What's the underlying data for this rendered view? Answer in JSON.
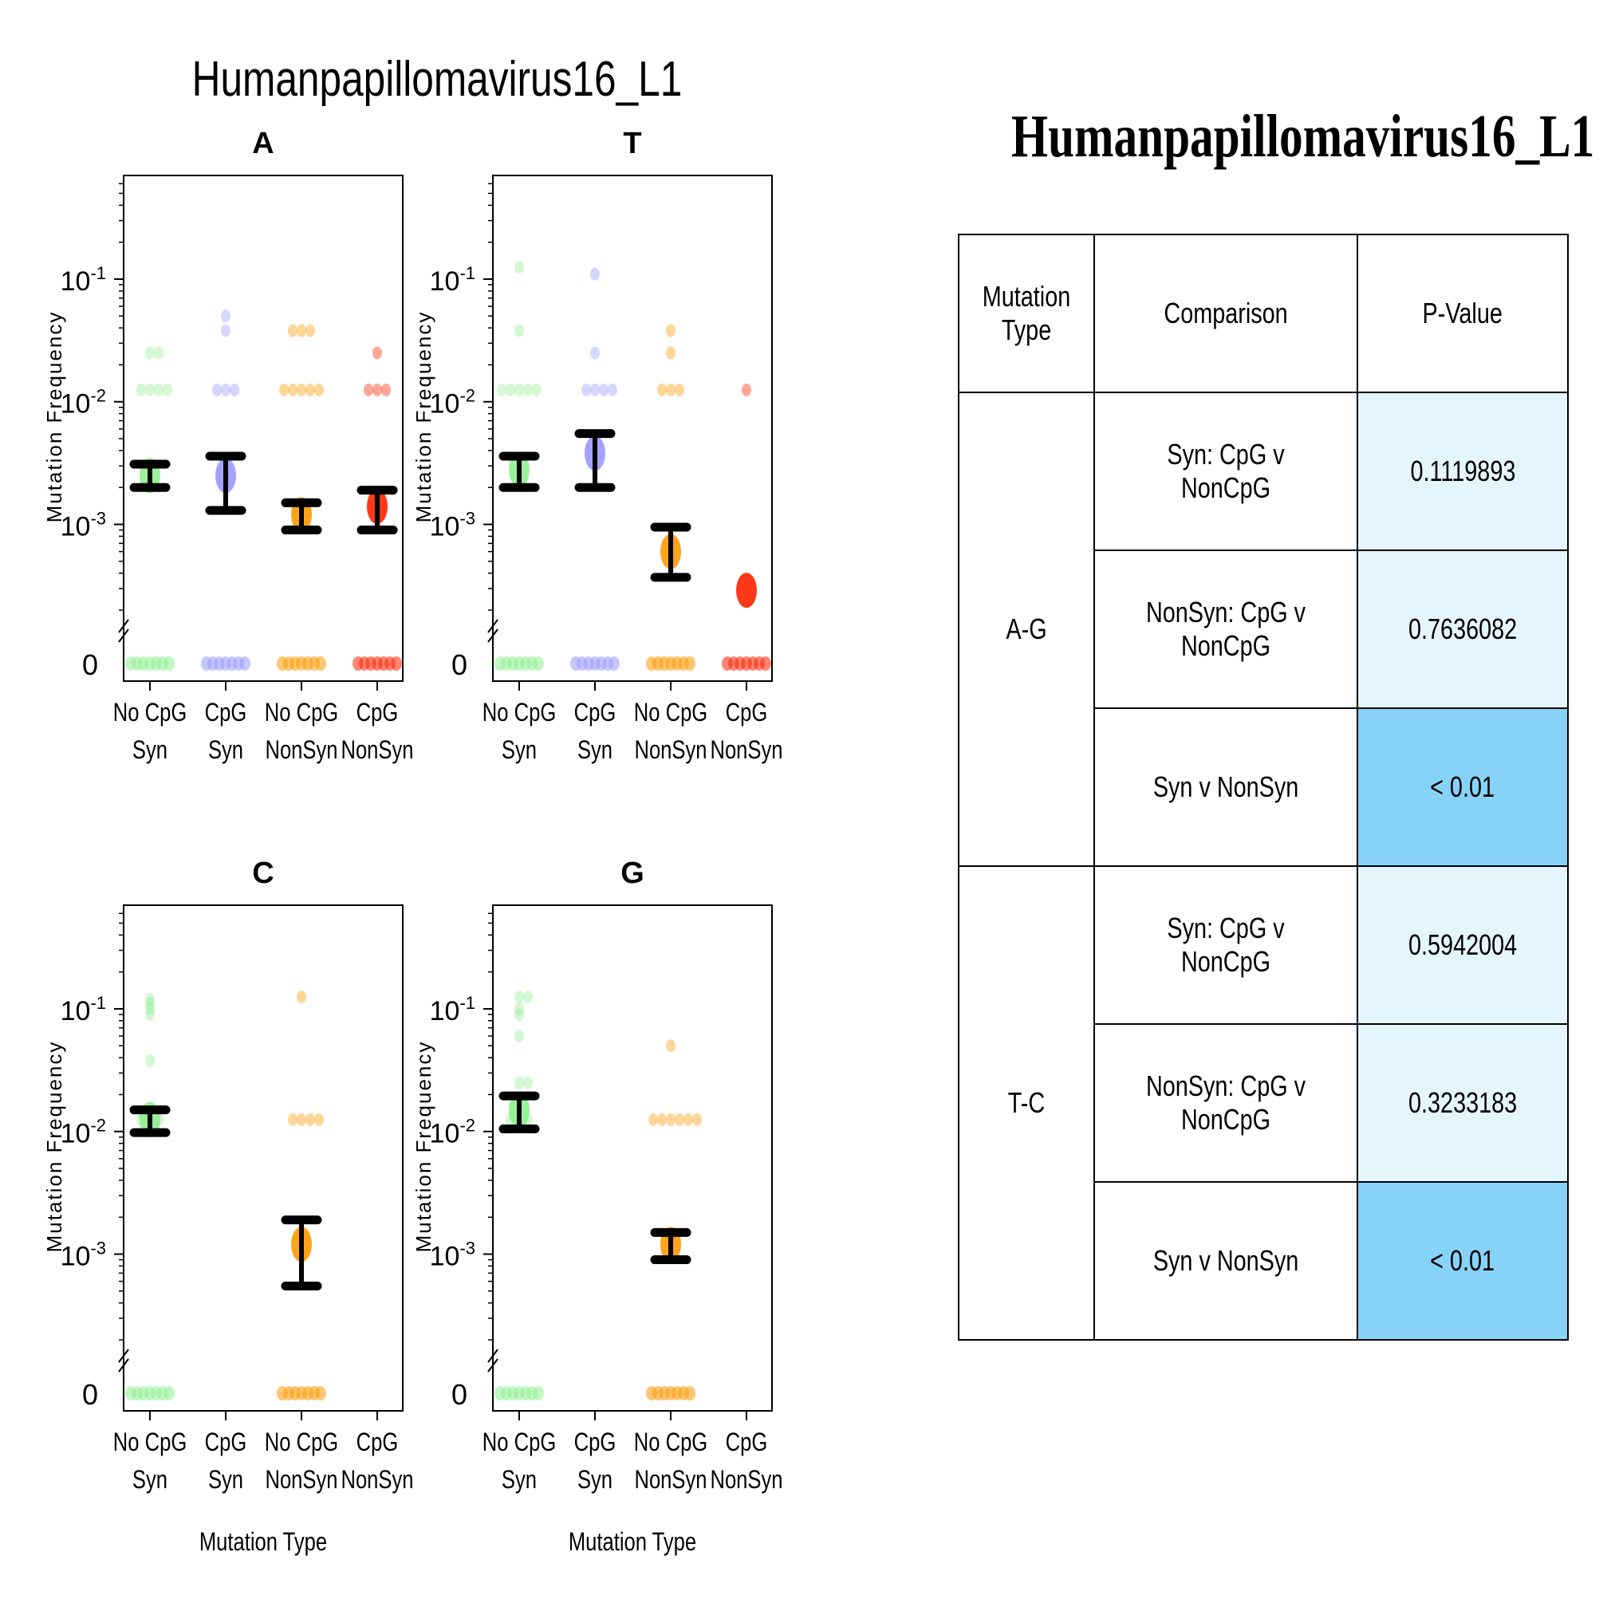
{
  "figure_title": "Humanpapillomavirus16_L1",
  "chart_data": {
    "type": "scatter",
    "y_label": "Mutation Frequency",
    "x_label": "Mutation Type",
    "y_scale": "log with zero break",
    "y_range": [
      0.0002,
      0.7
    ],
    "y_ticks": [
      {
        "value": 0.1,
        "base": "10",
        "exp": "-1"
      },
      {
        "value": 0.01,
        "base": "10",
        "exp": "-2"
      },
      {
        "value": 0.001,
        "base": "10",
        "exp": "-3"
      }
    ],
    "zero_label": "0",
    "categories": [
      {
        "line1": "No CpG",
        "line2": "Syn"
      },
      {
        "line1": "CpG",
        "line2": "Syn"
      },
      {
        "line1": "No CpG",
        "line2": "NonSyn"
      },
      {
        "line1": "CpG",
        "line2": "NonSyn"
      }
    ],
    "colors": [
      "#90ee90",
      "#9999ff",
      "#ff9900",
      "#ff2200"
    ],
    "panels": [
      {
        "title": "A",
        "series": [
          {
            "category": 0,
            "points": [
              0.025,
              0.025,
              0.0125,
              0.0125,
              0.0125,
              0.0125
            ],
            "zero": true,
            "mean": 0.0025,
            "lower": 0.002,
            "upper": 0.0031
          },
          {
            "category": 1,
            "points": [
              0.05,
              0.038,
              0.0125,
              0.0125,
              0.0125
            ],
            "zero": true,
            "mean": 0.0025,
            "lower": 0.0013,
            "upper": 0.0036
          },
          {
            "category": 2,
            "points": [
              0.038,
              0.038,
              0.038,
              0.0125,
              0.0125,
              0.0125,
              0.0125,
              0.0125
            ],
            "zero": true,
            "mean": 0.0012,
            "lower": 0.0009,
            "upper": 0.0015
          },
          {
            "category": 3,
            "points": [
              0.025,
              0.0125,
              0.0125,
              0.0125
            ],
            "zero": true,
            "mean": 0.0014,
            "lower": 0.0009,
            "upper": 0.0019
          }
        ]
      },
      {
        "title": "T",
        "series": [
          {
            "category": 0,
            "points": [
              0.125,
              0.038,
              0.0125,
              0.0125,
              0.0125,
              0.0125,
              0.0125
            ],
            "zero": true,
            "mean": 0.0028,
            "lower": 0.002,
            "upper": 0.0036
          },
          {
            "category": 1,
            "points": [
              0.11,
              0.025,
              0.0125,
              0.0125,
              0.0125,
              0.0125
            ],
            "zero": true,
            "mean": 0.0038,
            "lower": 0.002,
            "upper": 0.0055
          },
          {
            "category": 2,
            "points": [
              0.038,
              0.025,
              0.0125,
              0.0125,
              0.0125
            ],
            "zero": true,
            "mean": 0.0006,
            "lower": 0.00037,
            "upper": 0.00095
          },
          {
            "category": 3,
            "points": [
              0.0125
            ],
            "zero": true,
            "mean": 0.00029,
            "lower": null,
            "upper": null
          }
        ]
      },
      {
        "title": "C",
        "series": [
          {
            "category": 0,
            "points": [
              0.12,
              0.11,
              0.1,
              0.09,
              0.038,
              0.0125,
              0.0125,
              0.0125
            ],
            "zero": true,
            "mean": 0.0125,
            "lower": 0.0098,
            "upper": 0.015
          },
          {
            "category": 2,
            "points": [
              0.125,
              0.0125,
              0.0125,
              0.0125,
              0.0125
            ],
            "zero": true,
            "mean": 0.0012,
            "lower": 0.00055,
            "upper": 0.0019
          }
        ]
      },
      {
        "title": "G",
        "series": [
          {
            "category": 0,
            "points": [
              0.125,
              0.125,
              0.1,
              0.09,
              0.06,
              0.025,
              0.025,
              0.0125,
              0.0125,
              0.0125
            ],
            "zero": true,
            "mean": 0.015,
            "lower": 0.0105,
            "upper": 0.0195
          },
          {
            "category": 2,
            "points": [
              0.05,
              0.0125,
              0.0125,
              0.0125,
              0.0125,
              0.0125,
              0.0125
            ],
            "zero": true,
            "mean": 0.0012,
            "lower": 0.0009,
            "upper": 0.0015
          }
        ]
      }
    ]
  },
  "table": {
    "title": "Humanpapillomavirus16_L1",
    "headers": [
      "Mutation Type",
      "Comparison",
      "P-Value"
    ],
    "groups": [
      {
        "name": "A-G",
        "rows": [
          {
            "comparison": "Syn: CpG v NonCpG",
            "p": "0.1119893"
          },
          {
            "comparison": "NonSyn: CpG v NonCpG",
            "p": "0.7636082"
          },
          {
            "comparison": "Syn v NonSyn",
            "p": "< 0.01"
          }
        ]
      },
      {
        "name": "T-C",
        "rows": [
          {
            "comparison": "Syn: CpG v NonCpG",
            "p": "0.5942004"
          },
          {
            "comparison": "NonSyn: CpG v NonCpG",
            "p": "0.3233183"
          },
          {
            "comparison": "Syn v NonSyn",
            "p": "< 0.01"
          }
        ]
      }
    ],
    "colors": {
      "light": "#e5f5fd",
      "strong": "#87d3f7"
    }
  }
}
